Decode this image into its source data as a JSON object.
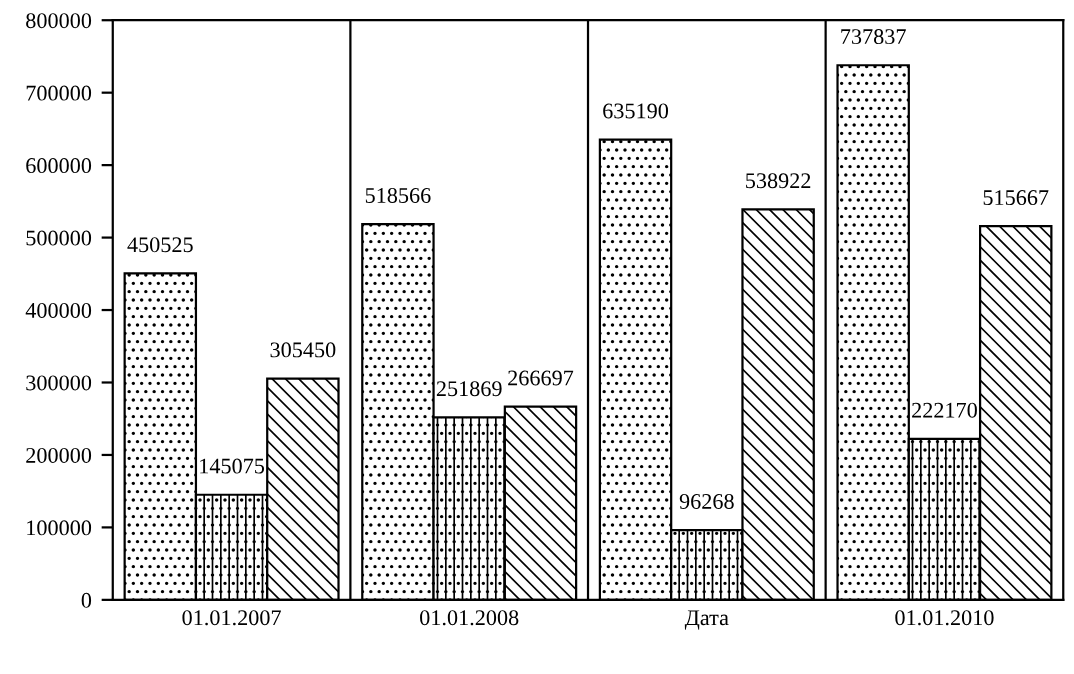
{
  "chart_data": {
    "type": "bar",
    "categories": [
      "01.01.2007",
      "01.01.2008",
      "Дата",
      "01.01.2010"
    ],
    "series": [
      {
        "color": "#000000",
        "values": [
          450525,
          518566,
          635190,
          737837
        ]
      },
      {
        "color": "#000000",
        "values": [
          145075,
          251869,
          96268,
          222170
        ]
      },
      {
        "color": "#000000",
        "values": [
          305450,
          266697,
          538922,
          515667
        ]
      }
    ],
    "ylim": [
      0,
      800000
    ],
    "yticks": [
      0,
      100000,
      200000,
      300000,
      400000,
      500000,
      600000,
      700000,
      800000
    ],
    "grid": "x",
    "data_labels": true,
    "legend": false
  }
}
